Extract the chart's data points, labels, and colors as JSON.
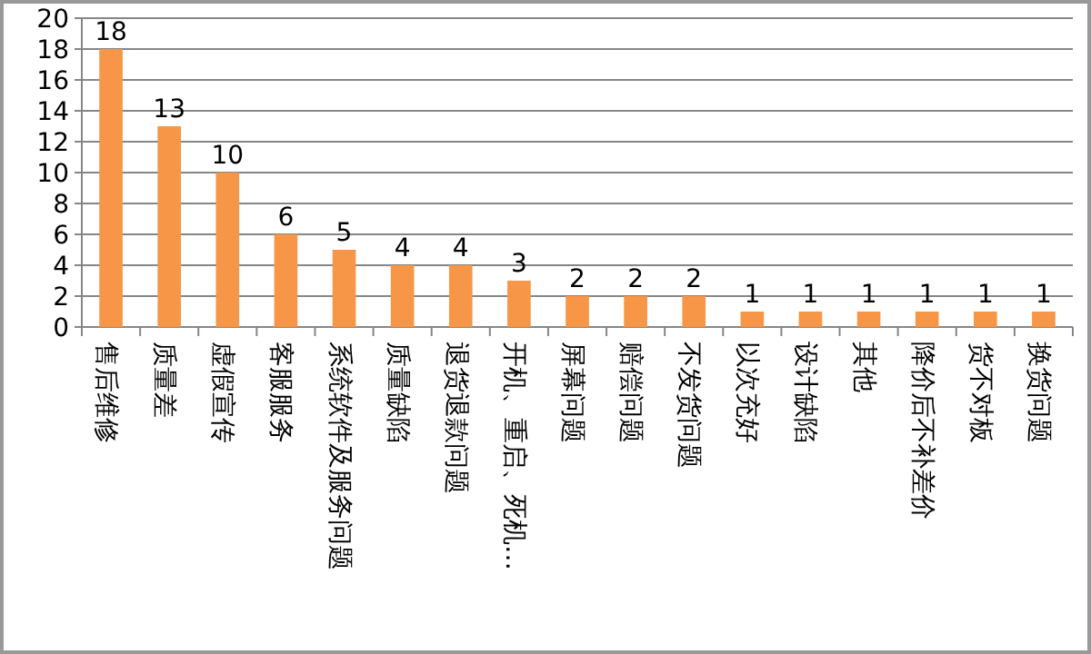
{
  "chart_data": {
    "type": "bar",
    "categories": [
      "售后维修",
      "质量差",
      "虚假宣传",
      "客服服务",
      "系统软件及服务问题",
      "质量缺陷",
      "退货退款问题",
      "开机、重启、死机…",
      "屏幕问题",
      "赔偿问题",
      "不发货问题",
      "以次充好",
      "设计缺陷",
      "其他",
      "降价后不补差价",
      "货不对板",
      "换货问题"
    ],
    "values": [
      18,
      13,
      10,
      6,
      5,
      4,
      4,
      3,
      2,
      2,
      2,
      1,
      1,
      1,
      1,
      1,
      1
    ],
    "color": "#f79646",
    "ylim": [
      0,
      20
    ],
    "yticks": [
      0,
      2,
      4,
      6,
      8,
      10,
      12,
      14,
      16,
      18,
      20
    ],
    "grid": "y",
    "data_labels": true
  }
}
